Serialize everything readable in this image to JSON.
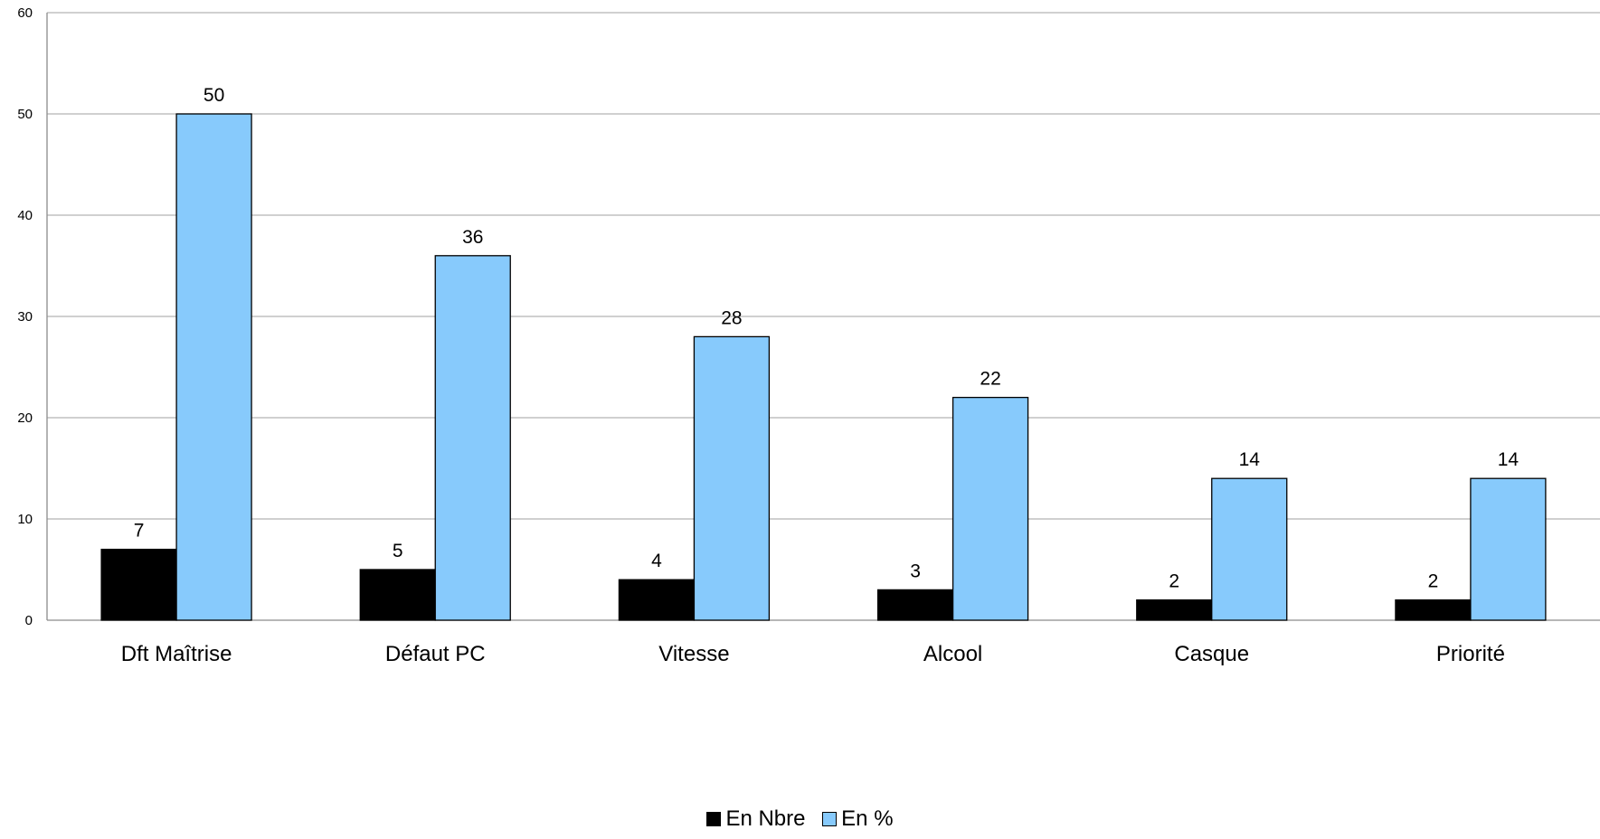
{
  "chart_data": {
    "type": "bar",
    "title": "",
    "xlabel": "",
    "ylabel": "",
    "ylim": [
      0,
      60
    ],
    "yticks": [
      "0",
      "10",
      "20",
      "30",
      "40",
      "50",
      "60"
    ],
    "grid": true,
    "legend_position": "bottom",
    "categories": [
      "Dft Maîtrise",
      "Défaut PC",
      "Vitesse",
      "Alcool",
      "Casque",
      "Priorité"
    ],
    "series": [
      {
        "name": "En Nbre",
        "color": "#000000",
        "values": [
          7,
          5,
          4,
          3,
          2,
          2
        ]
      },
      {
        "name": "En %",
        "color": "#87CAFC",
        "values": [
          50,
          36,
          28,
          22,
          14,
          14
        ]
      }
    ]
  }
}
